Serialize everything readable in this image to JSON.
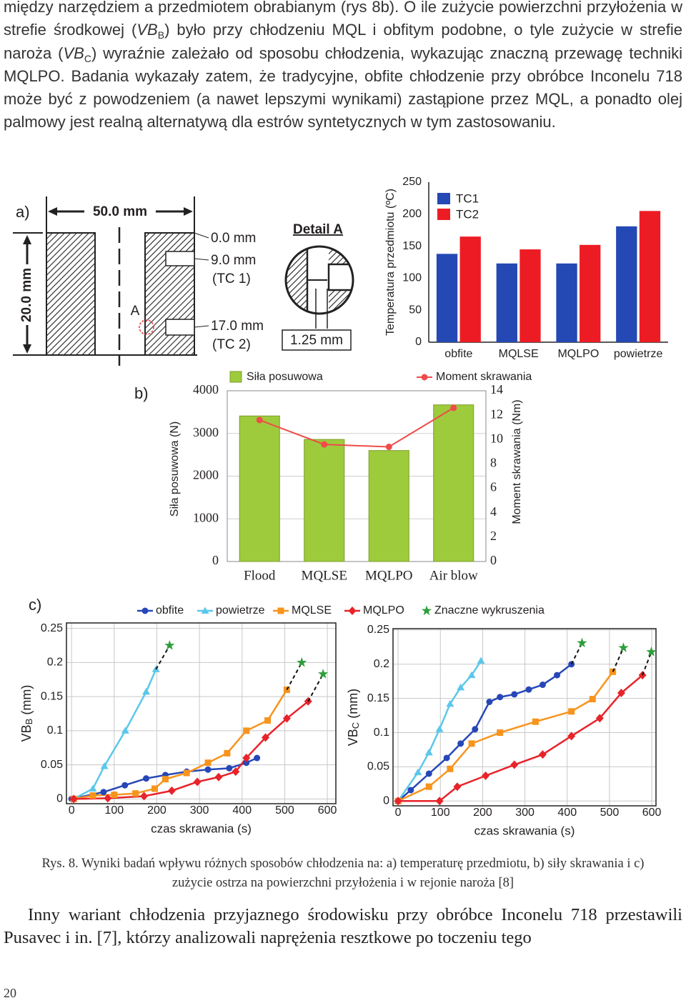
{
  "text": {
    "paragraph1": [
      "między narzędziem a przedmiotem obrabianym (rys 8b). O ile zużycie powierzchni przyłożenia w strefie środkowej (",
      "VB",
      "B",
      ") było przy chłodzeniu MQL i obfitym podobne, o tyle zużycie w strefie naroża (",
      "VB",
      "C",
      ") wyraźnie zależało od sposobu chłodzenia, wykazując znaczną przewagę techniki MQLPO. Badania wykazały zatem, że tradycyjne, obfite chłodzenie przy obróbce Inconelu 718 może być z powodzeniem (a nawet lepszymi wynikami) zastąpione przez MQL, a ponadto olej palmowy jest realną alternatywą dla estrów syntetycznych w tym zastosowaniu."
    ],
    "caption": "Rys. 8. Wyniki badań wpływu różnych sposobów chłodzenia na: a) temperaturę przedmiotu, b) siły skrawania i c) zużycie ostrza na powierzchni przyłożenia i w rejonie naroża [8]",
    "paragraph2": "Inny wariant chłodzenia przyjaznego środowisku przy obróbce Inconelu 718 przestawili Pusavec i in. [7], którzy analizowali naprężenia resztkowe po toczeniu tego",
    "page_number": "20"
  },
  "panel_a": {
    "label": "a)",
    "width": "50.0 mm",
    "height": "20.0 mm",
    "depth0": "0.0 mm",
    "depth1": "9.0 mm",
    "tc1": "(TC 1)",
    "depth2": "17.0 mm",
    "tc2": "(TC 2)",
    "point": "A",
    "detail_title": "Detail A",
    "detail_dim": "1.25 mm"
  },
  "chart_data": [
    {
      "type": "bar",
      "ylabel": "Temperatura przedmiotu (ºC)",
      "categories": [
        "obfite",
        "MQLSE",
        "MQLPO",
        "powietrze"
      ],
      "series": [
        {
          "name": "TC1",
          "color": "#2448b4",
          "values": [
            138,
            123,
            123,
            181
          ]
        },
        {
          "name": "TC2",
          "color": "#ed1c24",
          "values": [
            165,
            145,
            152,
            205
          ]
        }
      ],
      "ylim": [
        0,
        250
      ],
      "yticks": [
        0,
        50,
        100,
        150,
        200,
        250
      ]
    },
    {
      "type": "bar_line",
      "panel": "b)",
      "ylabel": "Siła posuwowa (N)",
      "y2label": "Moment skrawania (Nm)",
      "categories": [
        "Flood",
        "MQLSE",
        "MQLPO",
        "Air blow"
      ],
      "series": [
        {
          "name": "Siła posuwowa",
          "color": "#9dcb3c",
          "values": [
            3410,
            2860,
            2600,
            3670
          ]
        },
        {
          "name": "Moment skrawania",
          "color": "#ef4b4b",
          "axis": "y2",
          "values": [
            11.6,
            9.6,
            9.4,
            12.6
          ]
        }
      ],
      "ylim": [
        0,
        4000
      ],
      "yticks": [
        0,
        1000,
        2000,
        3000,
        4000
      ],
      "y2lim": [
        0,
        14
      ],
      "y2ticks": [
        0,
        2,
        4,
        6,
        8,
        10,
        12,
        14
      ],
      "grid": true
    },
    {
      "type": "line",
      "panel": "c)",
      "xlabel": "czas skrawania (s)",
      "ylabel": [
        "VB",
        "B",
        " (mm)"
      ],
      "xlim": [
        -12,
        620
      ],
      "ylim": [
        -0.007,
        0.258
      ],
      "xticks": [
        0,
        100,
        200,
        300,
        400,
        500,
        600
      ],
      "yticks": [
        0,
        0.05,
        0.1,
        0.15,
        0.2,
        0.25
      ],
      "grid": true,
      "series": [
        {
          "name": "obfite",
          "color": "#2747b8",
          "marker": "circle",
          "x": [
            0,
            75,
            125,
            175,
            220,
            270,
            320,
            370,
            410,
            435
          ],
          "values": [
            0,
            0.01,
            0.02,
            0.03,
            0.035,
            0.04,
            0.043,
            0.045,
            0.053,
            0.06
          ]
        },
        {
          "name": "powietrze",
          "color": "#5cc7ea",
          "marker": "triangle",
          "x": [
            5,
            50,
            77,
            126,
            175,
            198
          ],
          "values": [
            0,
            0.015,
            0.048,
            0.1,
            0.157,
            0.19
          ]
        },
        {
          "name": "MQLSE",
          "color": "#f7941d",
          "marker": "square",
          "x": [
            5,
            50,
            100,
            150,
            195,
            220,
            270,
            320,
            365,
            410,
            460,
            505
          ],
          "values": [
            0,
            0.005,
            0.006,
            0.008,
            0.015,
            0.029,
            0.038,
            0.053,
            0.067,
            0.1,
            0.115,
            0.16
          ]
        },
        {
          "name": "MQLPO",
          "color": "#e8232a",
          "marker": "diamond",
          "x": [
            5,
            85,
            170,
            235,
            295,
            345,
            385,
            410,
            455,
            505,
            555
          ],
          "values": [
            0,
            0.001,
            0.004,
            0.012,
            0.025,
            0.032,
            0.04,
            0.06,
            0.09,
            0.118,
            0.143
          ]
        },
        {
          "name": "Znaczne wykruszenia",
          "color": "#2e9e3c",
          "marker": "star",
          "x": [
            230,
            540,
            590
          ],
          "values": [
            0.225,
            0.2,
            0.183
          ]
        }
      ]
    },
    {
      "type": "line",
      "xlabel": "czas skrawania (s)",
      "ylabel": [
        "VB",
        "C",
        " (mm)"
      ],
      "xlim": [
        -12,
        610
      ],
      "ylim": [
        -0.007,
        0.252
      ],
      "xticks": [
        0,
        100,
        200,
        300,
        400,
        500,
        600
      ],
      "yticks": [
        0,
        0.05,
        0.1,
        0.15,
        0.2,
        0.25
      ],
      "grid": true,
      "series": [
        {
          "color": "#2747b8",
          "marker": "circle",
          "x": [
            0,
            30,
            73,
            115,
            148,
            182,
            216,
            241,
            275,
            309,
            342,
            376,
            410
          ],
          "values": [
            0,
            0.016,
            0.04,
            0.063,
            0.084,
            0.105,
            0.145,
            0.152,
            0.156,
            0.163,
            0.17,
            0.184,
            0.2
          ]
        },
        {
          "color": "#5cc7ea",
          "marker": "triangle",
          "x": [
            0,
            47,
            73,
            98,
            123,
            148,
            174,
            196
          ],
          "values": [
            0,
            0.042,
            0.071,
            0.105,
            0.142,
            0.166,
            0.184,
            0.205
          ]
        },
        {
          "color": "#f7941d",
          "marker": "square",
          "x": [
            0,
            73,
            123,
            174,
            241,
            325,
            410,
            460,
            508
          ],
          "values": [
            0,
            0.021,
            0.047,
            0.084,
            0.1,
            0.116,
            0.131,
            0.149,
            0.189
          ]
        },
        {
          "color": "#e8232a",
          "marker": "diamond",
          "x": [
            0,
            98,
            140,
            207,
            275,
            342,
            410,
            477,
            528,
            578
          ],
          "values": [
            0,
            0,
            0.021,
            0.037,
            0.053,
            0.068,
            0.095,
            0.121,
            0.158,
            0.184
          ]
        },
        {
          "color": "#2e9e3c",
          "marker": "star",
          "x": [
            435,
            533,
            599
          ],
          "values": [
            0.231,
            0.224,
            0.218
          ]
        }
      ]
    }
  ]
}
